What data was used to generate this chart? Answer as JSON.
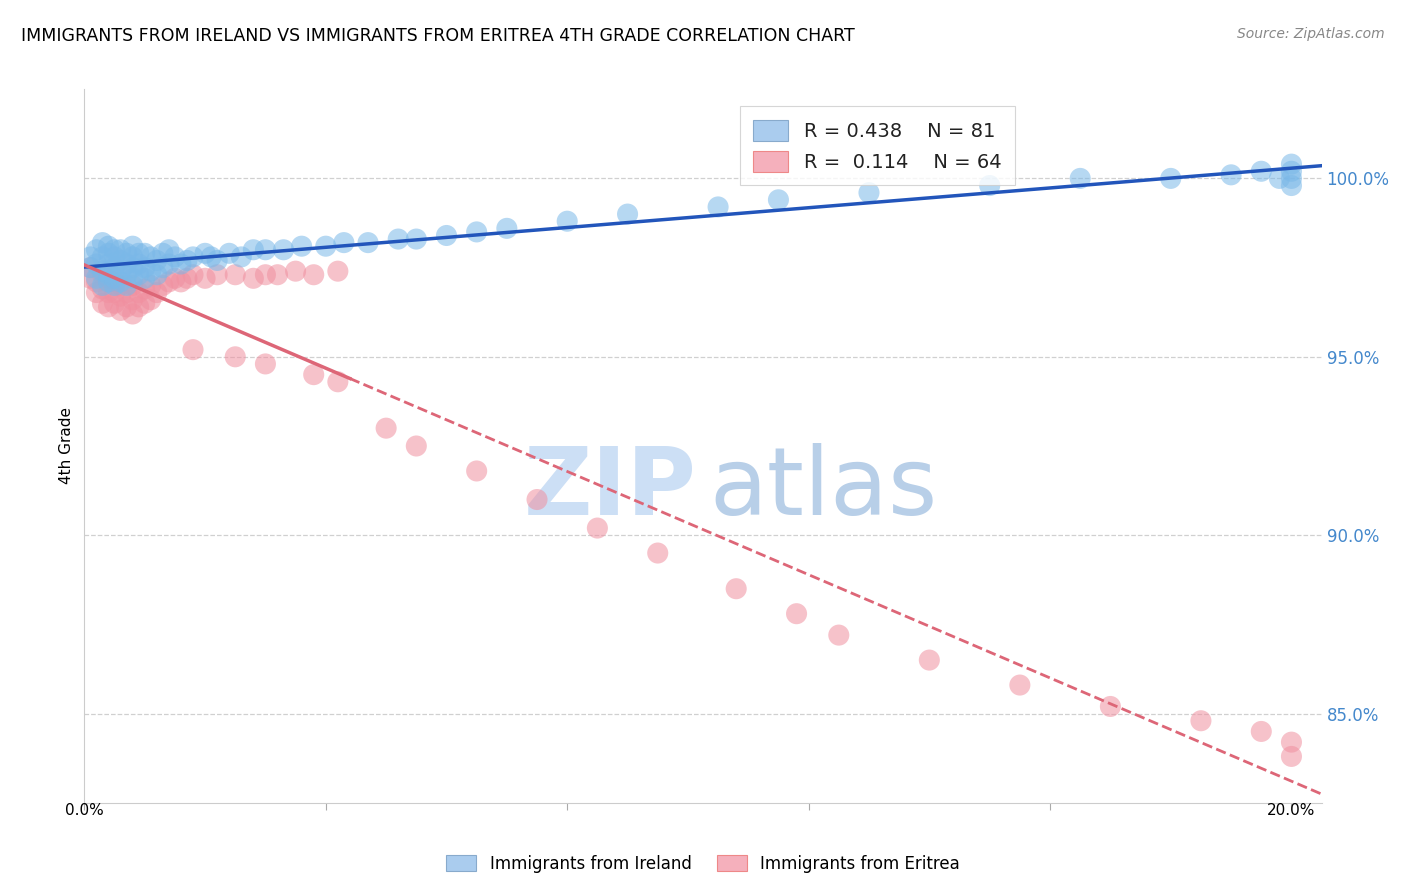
{
  "title": "IMMIGRANTS FROM IRELAND VS IMMIGRANTS FROM ERITREA 4TH GRADE CORRELATION CHART",
  "source": "Source: ZipAtlas.com",
  "ylabel": "4th Grade",
  "y_tick_positions": [
    85.0,
    90.0,
    95.0,
    100.0
  ],
  "y_tick_labels": [
    "85.0%",
    "90.0%",
    "95.0%",
    "100.0%"
  ],
  "x_range": [
    0.0,
    0.205
  ],
  "y_range": [
    82.5,
    102.5
  ],
  "ireland_R": "0.438",
  "ireland_N": "81",
  "eritrea_R": "0.114",
  "eritrea_N": "64",
  "ireland_scatter_color": "#7ab8e8",
  "eritrea_scatter_color": "#f090a0",
  "ireland_line_color": "#2255bb",
  "eritrea_line_color": "#dd6677",
  "background_color": "#ffffff",
  "watermark_zip_color": "#ccdff5",
  "watermark_atlas_color": "#b8cfe8",
  "grid_color": "#d0d0d0",
  "right_axis_color": "#4488cc",
  "source_color": "#888888",
  "ireland_x": [
    0.001,
    0.001,
    0.002,
    0.002,
    0.002,
    0.003,
    0.003,
    0.003,
    0.003,
    0.004,
    0.004,
    0.004,
    0.004,
    0.004,
    0.005,
    0.005,
    0.005,
    0.005,
    0.005,
    0.006,
    0.006,
    0.006,
    0.006,
    0.007,
    0.007,
    0.007,
    0.007,
    0.008,
    0.008,
    0.008,
    0.008,
    0.009,
    0.009,
    0.009,
    0.01,
    0.01,
    0.01,
    0.011,
    0.011,
    0.012,
    0.012,
    0.013,
    0.013,
    0.014,
    0.014,
    0.015,
    0.016,
    0.017,
    0.018,
    0.02,
    0.021,
    0.022,
    0.024,
    0.026,
    0.028,
    0.03,
    0.033,
    0.036,
    0.04,
    0.043,
    0.047,
    0.052,
    0.055,
    0.06,
    0.065,
    0.07,
    0.08,
    0.09,
    0.105,
    0.115,
    0.13,
    0.15,
    0.165,
    0.18,
    0.19,
    0.195,
    0.198,
    0.2,
    0.2,
    0.2,
    0.2
  ],
  "ireland_y": [
    97.5,
    97.8,
    97.2,
    97.6,
    98.0,
    97.0,
    97.4,
    97.8,
    98.2,
    97.1,
    97.3,
    97.6,
    97.9,
    98.1,
    97.0,
    97.2,
    97.5,
    97.8,
    98.0,
    97.1,
    97.4,
    97.7,
    98.0,
    97.0,
    97.3,
    97.6,
    97.9,
    97.2,
    97.5,
    97.8,
    98.1,
    97.3,
    97.6,
    97.9,
    97.2,
    97.5,
    97.9,
    97.4,
    97.8,
    97.3,
    97.7,
    97.5,
    97.9,
    97.6,
    98.0,
    97.8,
    97.6,
    97.7,
    97.8,
    97.9,
    97.8,
    97.7,
    97.9,
    97.8,
    98.0,
    98.0,
    98.0,
    98.1,
    98.1,
    98.2,
    98.2,
    98.3,
    98.3,
    98.4,
    98.5,
    98.6,
    98.8,
    99.0,
    99.2,
    99.4,
    99.6,
    99.8,
    100.0,
    100.0,
    100.1,
    100.2,
    100.0,
    99.8,
    100.0,
    100.2,
    100.4
  ],
  "eritrea_x": [
    0.001,
    0.001,
    0.002,
    0.002,
    0.003,
    0.003,
    0.003,
    0.004,
    0.004,
    0.004,
    0.005,
    0.005,
    0.005,
    0.006,
    0.006,
    0.006,
    0.007,
    0.007,
    0.008,
    0.008,
    0.008,
    0.009,
    0.009,
    0.01,
    0.01,
    0.011,
    0.011,
    0.012,
    0.013,
    0.014,
    0.015,
    0.016,
    0.017,
    0.018,
    0.02,
    0.022,
    0.025,
    0.028,
    0.03,
    0.032,
    0.035,
    0.038,
    0.042,
    0.018,
    0.025,
    0.03,
    0.038,
    0.042,
    0.05,
    0.055,
    0.065,
    0.075,
    0.085,
    0.095,
    0.108,
    0.118,
    0.125,
    0.14,
    0.155,
    0.17,
    0.185,
    0.195,
    0.2,
    0.2
  ],
  "eritrea_y": [
    97.2,
    97.5,
    96.8,
    97.1,
    96.5,
    96.9,
    97.3,
    96.4,
    96.8,
    97.2,
    96.5,
    96.8,
    97.1,
    96.3,
    96.7,
    97.0,
    96.4,
    96.8,
    96.2,
    96.6,
    97.0,
    96.4,
    96.8,
    96.5,
    96.9,
    96.6,
    97.0,
    96.8,
    97.0,
    97.1,
    97.2,
    97.1,
    97.2,
    97.3,
    97.2,
    97.3,
    97.3,
    97.2,
    97.3,
    97.3,
    97.4,
    97.3,
    97.4,
    95.2,
    95.0,
    94.8,
    94.5,
    94.3,
    93.0,
    92.5,
    91.8,
    91.0,
    90.2,
    89.5,
    88.5,
    87.8,
    87.2,
    86.5,
    85.8,
    85.2,
    84.8,
    84.5,
    84.2,
    83.8
  ]
}
